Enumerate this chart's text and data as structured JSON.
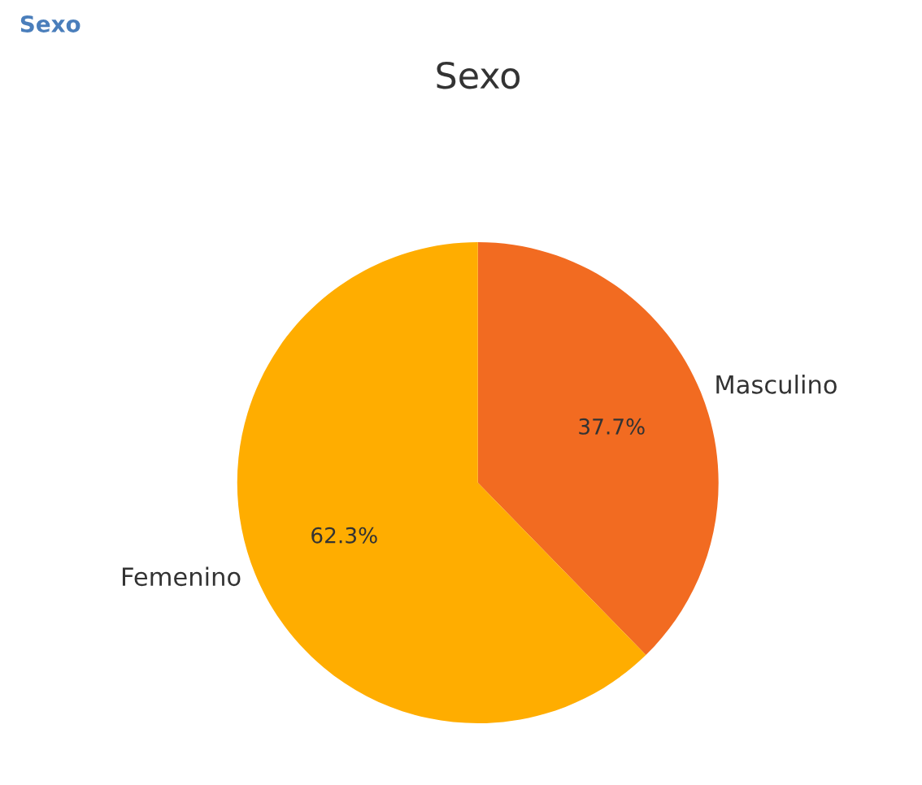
{
  "chart_data": {
    "type": "pie",
    "title": "Sexo",
    "annotations": [
      "Sexo"
    ],
    "categories": [
      "Masculino",
      "Femenino"
    ],
    "values": [
      37.7,
      62.3
    ],
    "colors": [
      "#f26b21",
      "#ffad00"
    ],
    "value_labels": [
      "37.7%",
      "62.3%"
    ],
    "legend": false
  }
}
